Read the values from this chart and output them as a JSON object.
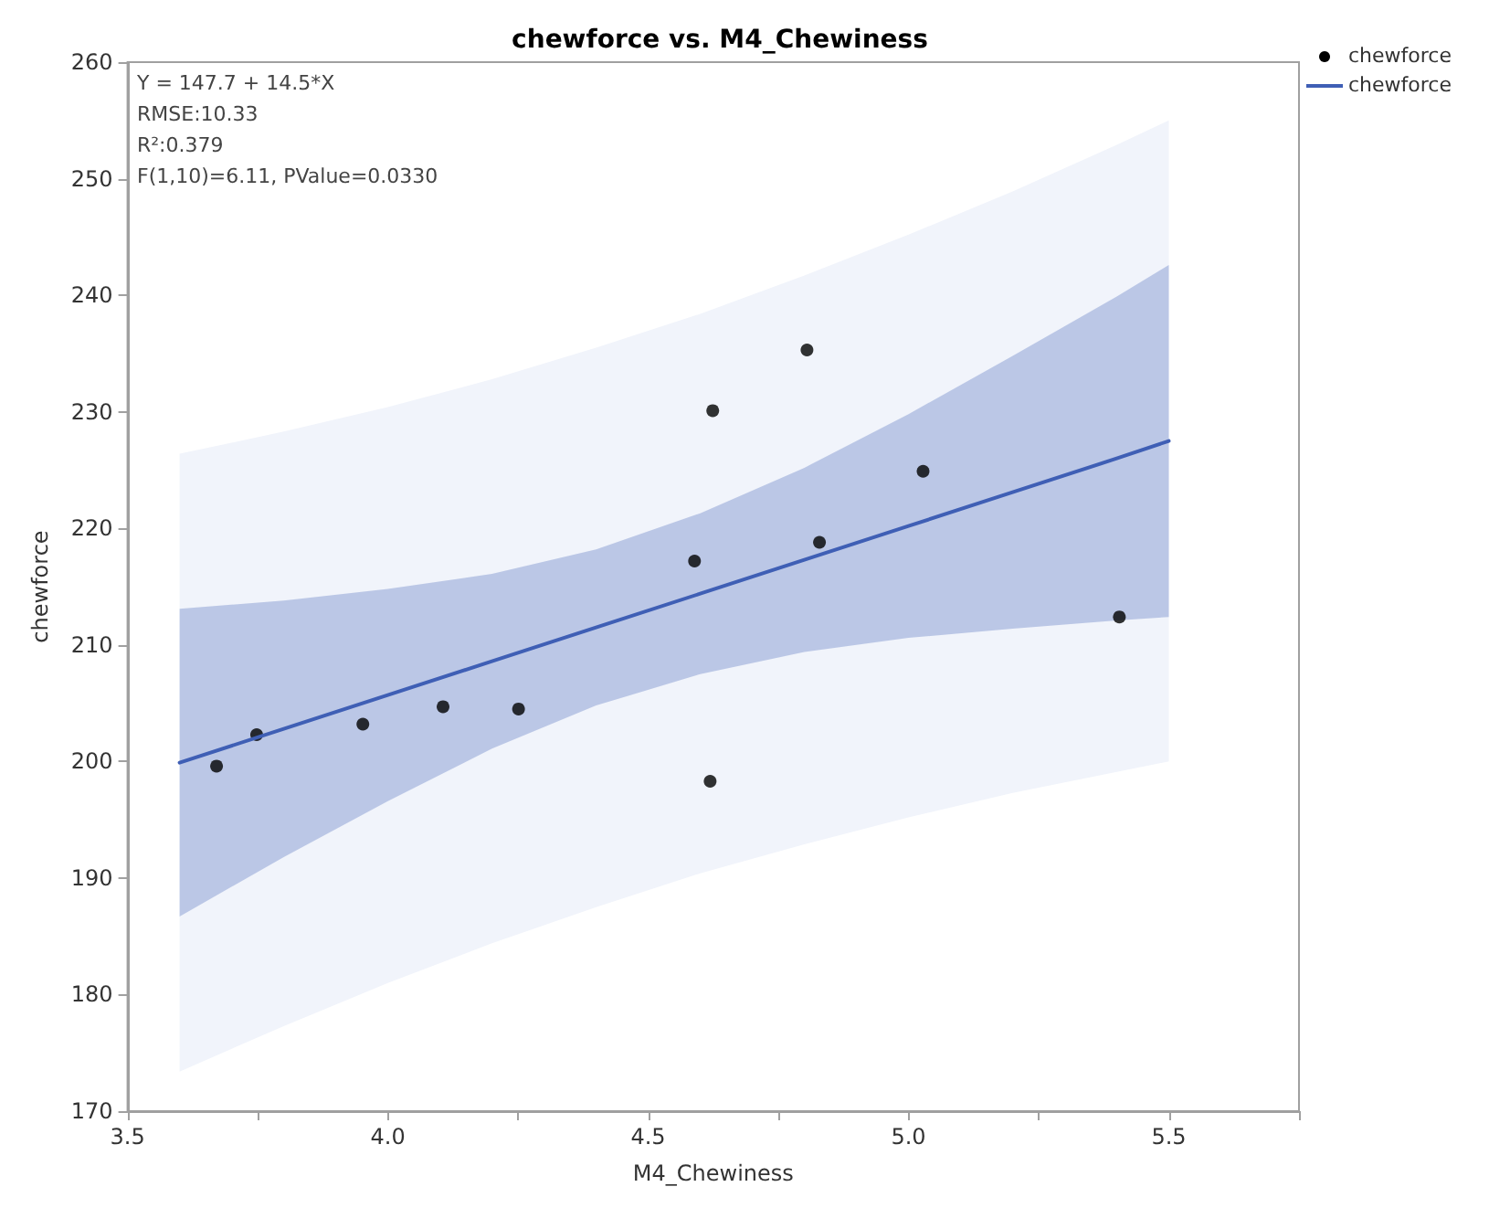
{
  "chart_data": {
    "type": "scatter",
    "title": "chewforce vs. M4_Chewiness",
    "xlabel": "M4_Chewiness",
    "ylabel": "chewforce",
    "annotations": [
      "Y = 147.7 + 14.5*X",
      "RMSE:10.33",
      "R²:0.379",
      "F(1,10)=6.11, PValue=0.0330"
    ],
    "xlim": [
      3.5,
      5.75
    ],
    "xticks": [
      {
        "value": 3.5,
        "label": "3.5"
      },
      {
        "value": 3.75,
        "label": null
      },
      {
        "value": 4,
        "label": "4.0"
      },
      {
        "value": 4.25,
        "label": null
      },
      {
        "value": 4.5,
        "label": "4.5"
      },
      {
        "value": 4.75,
        "label": null
      },
      {
        "value": 5,
        "label": "5.0"
      },
      {
        "value": 5.25,
        "label": null
      },
      {
        "value": 5.5,
        "label": "5.5"
      },
      {
        "value": 5.75,
        "label": null
      }
    ],
    "ylim": [
      170,
      260
    ],
    "yticks": [
      170,
      180,
      190,
      200,
      210,
      220,
      230,
      240,
      250,
      260
    ],
    "grid": false,
    "legend": "top right",
    "series": [
      {
        "type": "area",
        "color": "#f1f4fb",
        "x": [
          3.6,
          3.8,
          4.0,
          4.2,
          4.4,
          4.6,
          4.8,
          5.0,
          5.2,
          5.4,
          5.5
        ],
        "values": [
          null,
          null,
          null,
          null,
          null,
          null,
          null,
          null,
          null,
          null,
          null
        ],
        "lower": [
          173.4,
          177.3,
          181.0,
          184.4,
          187.5,
          190.4,
          192.9,
          195.2,
          197.3,
          199.1,
          200.0
        ],
        "upper": [
          226.4,
          228.3,
          230.4,
          232.8,
          235.5,
          238.4,
          241.7,
          245.2,
          248.9,
          252.9,
          255.0
        ]
      },
      {
        "marker": "circle",
        "name": "chewforce",
        "color": "#000000",
        "x": [
          3.671,
          3.748,
          3.952,
          4.106,
          4.251,
          4.619,
          4.589,
          4.624,
          4.805,
          4.829,
          5.028,
          5.405
        ],
        "values": [
          199.6,
          202.3,
          203.2,
          204.7,
          204.5,
          198.3,
          217.2,
          230.1,
          235.3,
          218.8,
          224.9,
          212.4
        ]
      },
      {
        "type": "line",
        "name": "chewforce",
        "color": "#3f5fb5",
        "line_style": "solid",
        "marker": "none",
        "x": [
          3.6,
          3.8,
          4.0,
          4.2,
          4.4,
          4.6,
          4.8,
          5.0,
          5.2,
          5.4,
          5.5
        ],
        "values": [
          199.9,
          202.8,
          205.7,
          208.6,
          211.5,
          214.4,
          217.3,
          220.2,
          223.1,
          226.0,
          227.5
        ],
        "lower": [
          186.7,
          191.8,
          196.6,
          201.1,
          204.8,
          207.5,
          209.4,
          210.6,
          211.4,
          212.1,
          212.4
        ],
        "upper": [
          213.1,
          213.8,
          214.8,
          216.1,
          218.2,
          221.3,
          225.2,
          229.8,
          234.8,
          239.9,
          242.6
        ]
      }
    ]
  }
}
